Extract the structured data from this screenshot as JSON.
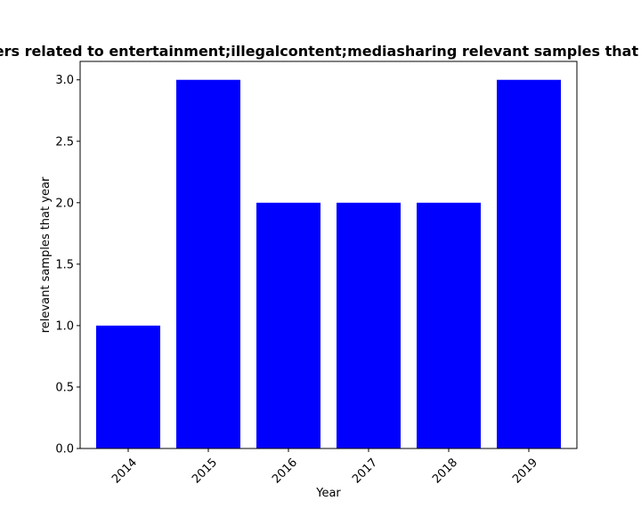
{
  "chart_data": {
    "type": "bar",
    "title": "Number of papers related to entertainment;illegalcontent;mediasharing relevant samples that year in each year",
    "xlabel": "Year",
    "ylabel": "relevant samples that year",
    "categories": [
      "2014",
      "2015",
      "2016",
      "2017",
      "2018",
      "2019"
    ],
    "values": [
      1,
      3,
      2,
      2,
      2,
      3
    ],
    "ylim": [
      0,
      3.15
    ],
    "yticks": [
      0.0,
      0.5,
      1.0,
      1.5,
      2.0,
      2.5,
      3.0
    ],
    "ytick_labels": [
      "0.0",
      "0.5",
      "1.0",
      "1.5",
      "2.0",
      "2.5",
      "3.0"
    ],
    "bar_color": "#0000ff",
    "grid": false
  }
}
